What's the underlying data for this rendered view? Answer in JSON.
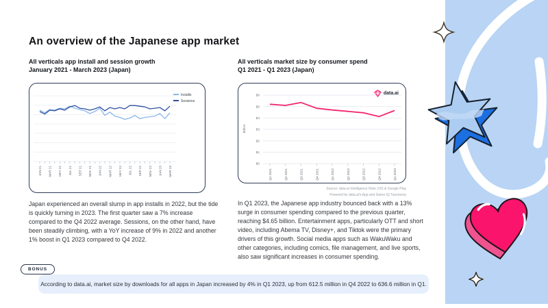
{
  "slide": {
    "title": "An overview of the Japanese app market"
  },
  "left_section": {
    "subtitle_line1": "All verticals app install and session growth",
    "subtitle_line2": "January 2021 - March 2023 (Japan)",
    "paragraph": "Japan experienced an overall slump in app installs in 2022, but the tide is quickly turning in 2023. The first quarter saw a 7% increase compared to the Q4 2022 average. Sessions, on the other hand, have been steadily climbing, with a YoY increase of 9% in 2022 and another 1% boost in Q1 2023 compared to Q4 2022."
  },
  "right_section": {
    "subtitle_line1": "All verticals market size by consumer spend",
    "subtitle_line2": "Q1 2021 - Q1 2023 (Japan)",
    "logo_text": "data.ai",
    "source_line1": "Source: data.ai Intelligence   Note: iOS & Google Play",
    "source_line2": "Powered by data.ai's App and Game IQ Taxonomy",
    "paragraph": "In Q1 2023, the Japanese app industry bounced back with a 13% surge in consumer spending compared to the previous quarter, reaching $4.65 billion. Entertainment apps, particularly OTT and short video, including Abema TV, Disney+, and Tiktok were the primary drivers of this growth. Social media apps such as WakuWaku and other categories, including comics, file management, and live sports, also saw significant increases in consumer spending."
  },
  "bonus": {
    "pill_label": "BONUS",
    "text": "According to data.ai, market size by downloads for all apps in Japan increased by 4% in Q1 2023, up from 612.5 million in Q4 2022 to 636.6 million in Q1."
  },
  "colors": {
    "panel_blue": "#b9d4f4",
    "card_border": "#2e3b55",
    "installs_line": "#8ab5ea",
    "sessions_line": "#2b4f9e",
    "spend_line": "#f2246c",
    "bonus_box": "#e6effb",
    "star_face": "#accdf1",
    "star_side": "#1b6fe0",
    "heart_face": "#fb146b",
    "heart_side": "#ef5390"
  },
  "decorations": [
    "sparkle-icon",
    "white-swirl-line",
    "blue-3d-star-illustration",
    "pink-3d-heart-illustration",
    "sparkle-icon"
  ],
  "chart_data": [
    {
      "type": "line",
      "title": "All verticals app install and session growth, January 2021 - March 2023 (Japan)",
      "x": [
        "JAN 21",
        "FEB 21",
        "MAR 21",
        "APR 21",
        "MAY 21",
        "JUN 21",
        "JUL 21",
        "AUG 21",
        "SEP 21",
        "OCT 21",
        "NOV 21",
        "DEC 21",
        "JAN 22",
        "FEB 22",
        "MAR 22",
        "APR 22",
        "MAY 22",
        "JUN 22",
        "JUL 22",
        "AUG 22",
        "SEP 22",
        "OCT 22",
        "NOV 22",
        "DEC 22",
        "JAN 23",
        "FEB 23",
        "MAR 23"
      ],
      "x_labels_shown_every": 2,
      "series": [
        {
          "name": "Installs",
          "color": "#8ab5ea",
          "values": [
            74,
            70,
            75,
            74,
            77,
            76,
            80,
            77,
            75,
            73,
            69,
            72,
            77,
            66,
            71,
            65,
            63,
            60,
            62,
            66,
            61,
            63,
            64,
            65,
            69,
            61,
            70
          ]
        },
        {
          "name": "Sessions",
          "color": "#2b4f9e",
          "values": [
            72,
            68,
            74,
            73,
            76,
            74,
            79,
            81,
            77,
            76,
            74,
            76,
            79,
            73,
            78,
            76,
            78,
            76,
            81,
            81,
            80,
            79,
            76,
            77,
            78,
            73,
            80
          ]
        }
      ],
      "ylim": [
        0,
        100
      ],
      "y_unit": "relative index (no y-axis labels shown)",
      "grid": true,
      "legend_position": "top-right"
    },
    {
      "type": "line",
      "title": "All verticals market size by consumer spend, Q1 2021 - Q1 2023 (Japan)",
      "categories": [
        "Q1 2021",
        "Q2 2021",
        "Q3 2021",
        "Q4 2021",
        "Q1 2022",
        "Q2 2022",
        "Q3 2022",
        "Q4 2022",
        "Q1 2023"
      ],
      "values": [
        5.2,
        5.1,
        5.35,
        4.85,
        4.7,
        4.58,
        4.45,
        4.12,
        4.65
      ],
      "color": "#f2246c",
      "ylabel": "Billion",
      "ytick_labels": [
        "$6",
        "$5",
        "$4",
        "$3",
        "$2",
        "$1",
        "$0"
      ],
      "ylim": [
        0,
        6
      ],
      "grid": true
    }
  ]
}
